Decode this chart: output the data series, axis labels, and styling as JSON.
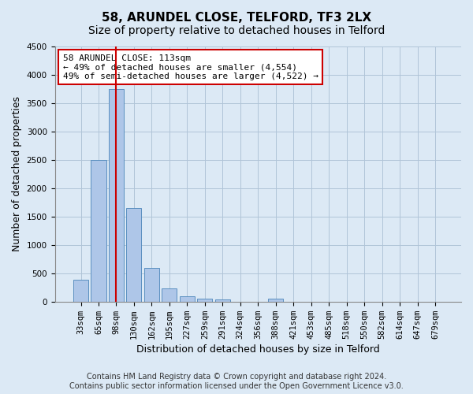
{
  "title": "58, ARUNDEL CLOSE, TELFORD, TF3 2LX",
  "subtitle": "Size of property relative to detached houses in Telford",
  "xlabel": "Distribution of detached houses by size in Telford",
  "ylabel": "Number of detached properties",
  "categories": [
    "33sqm",
    "65sqm",
    "98sqm",
    "130sqm",
    "162sqm",
    "195sqm",
    "227sqm",
    "259sqm",
    "291sqm",
    "324sqm",
    "356sqm",
    "388sqm",
    "421sqm",
    "453sqm",
    "485sqm",
    "518sqm",
    "550sqm",
    "582sqm",
    "614sqm",
    "647sqm",
    "679sqm"
  ],
  "values": [
    380,
    2500,
    3750,
    1650,
    600,
    240,
    100,
    60,
    40,
    0,
    0,
    60,
    0,
    0,
    0,
    0,
    0,
    0,
    0,
    0,
    0
  ],
  "bar_color": "#aec6e8",
  "bar_edge_color": "#5a8fc0",
  "vline_color": "#cc0000",
  "annotation_text": "58 ARUNDEL CLOSE: 113sqm\n← 49% of detached houses are smaller (4,554)\n49% of semi-detached houses are larger (4,522) →",
  "annotation_box_color": "#ffffff",
  "annotation_box_edge": "#cc0000",
  "ylim": [
    0,
    4500
  ],
  "yticks": [
    0,
    500,
    1000,
    1500,
    2000,
    2500,
    3000,
    3500,
    4000,
    4500
  ],
  "grid_color": "#b0c4d8",
  "background_color": "#dce9f5",
  "footer": "Contains HM Land Registry data © Crown copyright and database right 2024.\nContains public sector information licensed under the Open Government Licence v3.0.",
  "title_fontsize": 11,
  "subtitle_fontsize": 10,
  "xlabel_fontsize": 9,
  "ylabel_fontsize": 9,
  "tick_fontsize": 7.5,
  "footer_fontsize": 7
}
